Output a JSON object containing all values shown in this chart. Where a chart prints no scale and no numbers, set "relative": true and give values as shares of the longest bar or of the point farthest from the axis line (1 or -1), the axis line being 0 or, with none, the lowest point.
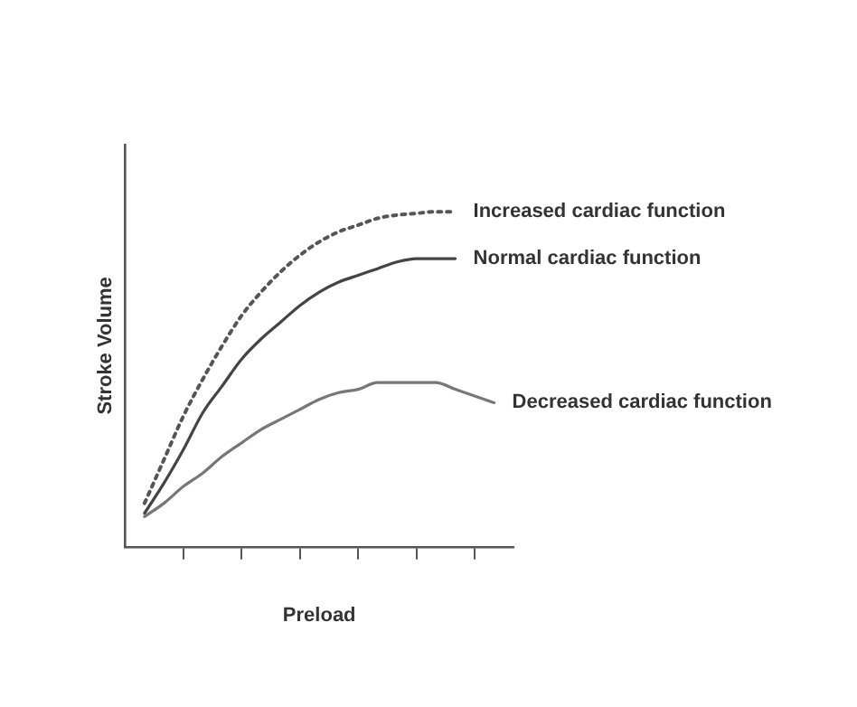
{
  "chart_data": {
    "type": "line",
    "xlabel": "Preload",
    "ylabel": "Stroke Volume",
    "relative": true,
    "legend": false,
    "grid": false,
    "marker": "none",
    "categories": [
      null,
      null,
      null,
      null,
      null,
      null,
      null,
      null,
      null,
      null,
      null,
      null,
      null,
      null,
      null,
      null,
      null,
      null,
      null,
      null,
      null
    ],
    "series": [
      {
        "name": "Increased cardiac function",
        "color": "#555555",
        "line_style": "dotted",
        "values": [
          null,
          0.13,
          0.26,
          0.39,
          0.5,
          0.6,
          0.69,
          0.76,
          0.82,
          0.87,
          0.91,
          0.94,
          0.96,
          0.98,
          0.99,
          0.995,
          1,
          1,
          null,
          null,
          null
        ]
      },
      {
        "name": "Normal cardiac function",
        "color": "#444444",
        "line_style": "solid",
        "values": [
          null,
          0.1,
          0.19,
          0.29,
          0.4,
          0.48,
          0.56,
          0.62,
          0.67,
          0.72,
          0.76,
          0.79,
          0.81,
          0.83,
          0.85,
          0.86,
          0.86,
          0.86,
          null,
          null,
          null
        ]
      },
      {
        "name": "Decreased cardiac function",
        "color": "#777777",
        "line_style": "solid",
        "values": [
          null,
          0.09,
          0.13,
          0.18,
          0.22,
          0.27,
          0.31,
          0.35,
          0.38,
          0.41,
          0.44,
          0.46,
          0.47,
          0.49,
          0.49,
          0.49,
          0.49,
          0.47,
          0.45,
          0.43,
          null
        ]
      }
    ]
  }
}
